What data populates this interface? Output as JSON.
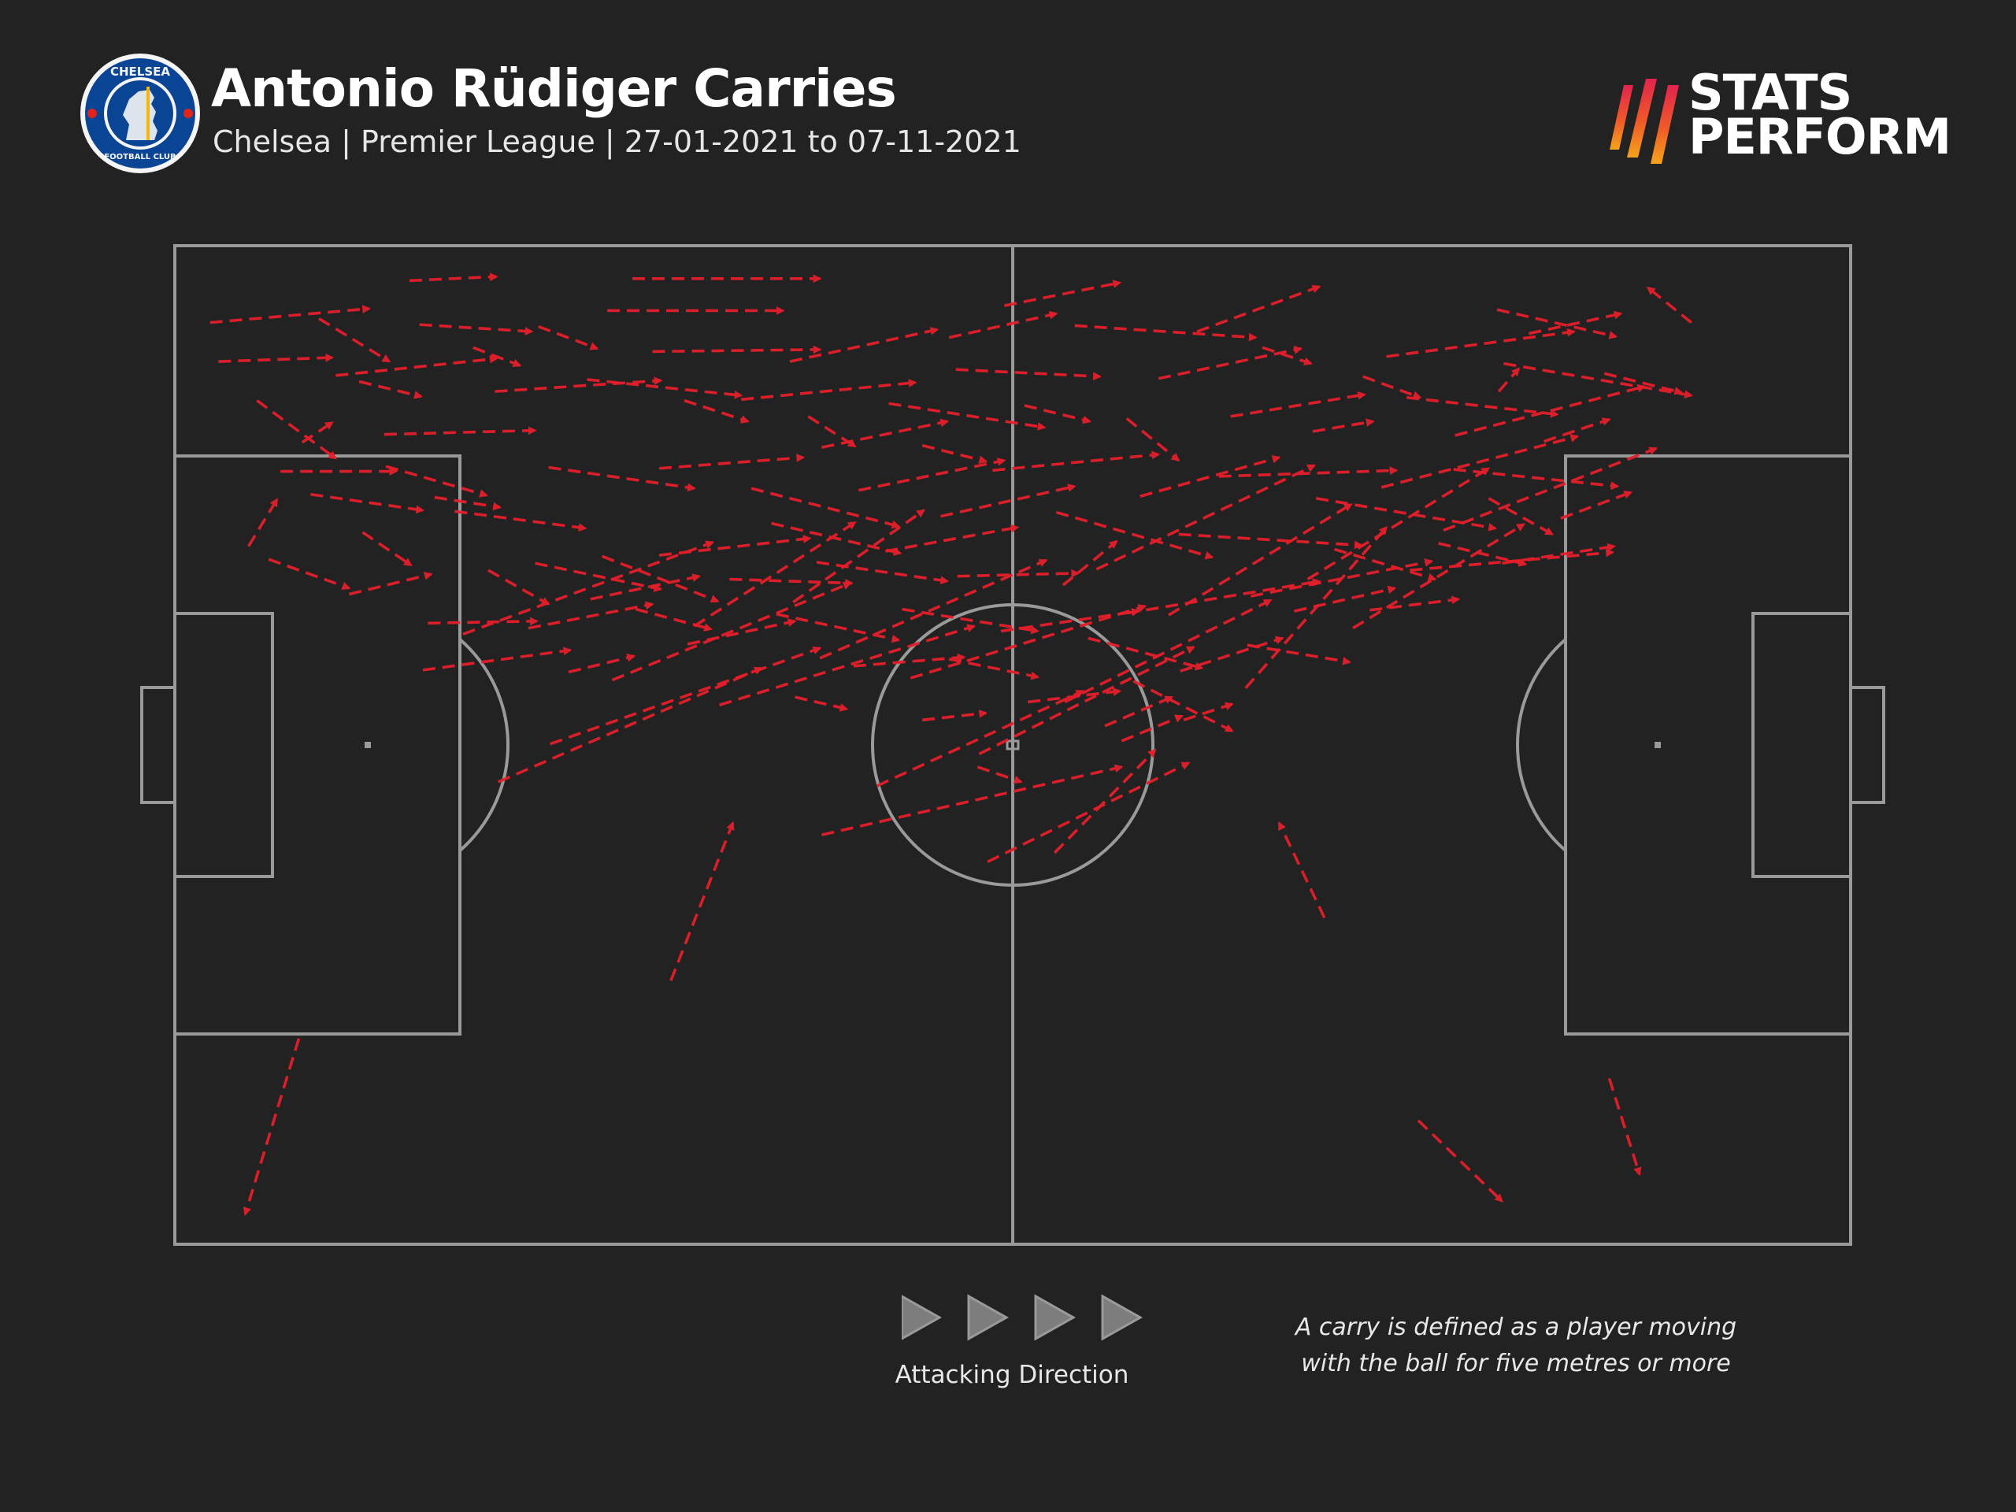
{
  "header": {
    "title": "Antonio Rüdiger Carries",
    "subtitle": "Chelsea | Premier League | 27-01-2021 to 07-11-2021",
    "club_crest": {
      "icon": "chelsea-crest-icon",
      "text_top": "CHELSEA",
      "text_bottom": "FOOTBALL CLUB"
    }
  },
  "brand": {
    "line1": "STATS",
    "line2": "PERFORM",
    "icon": "stats-perform-logo-icon",
    "gradient": [
      "#e2244e",
      "#f05a28",
      "#f6a31b"
    ]
  },
  "colors": {
    "background": "#222222",
    "pitch_lines": "#9a9a9a",
    "carry": "#e41e2b",
    "direction_arrows": "#7d7d7d"
  },
  "footer": {
    "direction_label": "Attacking Direction",
    "direction_icon": "play-arrow-icon",
    "definition_line1": "A carry is defined as a player moving",
    "definition_line2": "with the ball for five metres or more"
  },
  "chart_data": {
    "type": "pitch-arrow-map",
    "pitch": {
      "length": 100,
      "width": 100,
      "attacking_direction": "left-to-right"
    },
    "arrow_style": "dashed",
    "carries": [
      [
        90.5,
        7.7,
        87.9,
        4.2
      ],
      [
        74.2,
        87.6,
        79.2,
        95.7
      ],
      [
        85.6,
        83.4,
        87.4,
        93.0
      ],
      [
        68.6,
        67.3,
        65.9,
        57.8
      ],
      [
        7.4,
        79.4,
        4.2,
        97.0
      ],
      [
        29.6,
        73.6,
        33.3,
        57.8
      ],
      [
        38.6,
        59.0,
        56.5,
        52.2
      ],
      [
        19.3,
        53.7,
        35.0,
        42.3
      ],
      [
        52.5,
        60.8,
        58.5,
        50.5
      ],
      [
        48.5,
        61.7,
        60.5,
        51.8
      ],
      [
        41.9,
        54.1,
        54.2,
        44.6
      ],
      [
        22.4,
        49.9,
        38.5,
        40.3
      ],
      [
        32.5,
        46.0,
        47.7,
        38.1
      ],
      [
        48.0,
        50.9,
        60.8,
        40.2
      ],
      [
        26.1,
        43.5,
        40.3,
        33.8
      ],
      [
        38.5,
        41.3,
        52.0,
        31.5
      ],
      [
        53.1,
        45.7,
        65.4,
        35.5
      ],
      [
        43.9,
        43.3,
        57.9,
        36.1
      ],
      [
        63.9,
        44.3,
        72.3,
        28.2
      ],
      [
        70.3,
        38.3,
        80.5,
        27.9
      ],
      [
        17.2,
        38.9,
        32.1,
        29.7
      ],
      [
        31.0,
        38.1,
        40.6,
        27.7
      ],
      [
        36.9,
        35.7,
        44.7,
        26.5
      ],
      [
        59.3,
        37.0,
        70.2,
        25.9
      ],
      [
        55.0,
        32.4,
        68.0,
        22.0
      ],
      [
        67.6,
        33.4,
        78.4,
        22.3
      ],
      [
        56.8,
        36.8,
        68.3,
        33.6
      ],
      [
        64.2,
        35.1,
        75.0,
        31.6
      ],
      [
        73.7,
        32.5,
        85.8,
        30.7
      ],
      [
        75.7,
        28.5,
        88.4,
        20.3
      ],
      [
        72.0,
        24.2,
        83.7,
        19.1
      ],
      [
        76.4,
        19.0,
        87.7,
        14.1
      ],
      [
        79.3,
        11.8,
        90.5,
        15.0
      ],
      [
        72.3,
        11.1,
        83.5,
        8.6
      ],
      [
        78.9,
        6.4,
        86.0,
        9.1
      ],
      [
        61.0,
        8.6,
        68.3,
        4.1
      ],
      [
        53.7,
        8.0,
        64.5,
        9.2
      ],
      [
        58.7,
        13.3,
        67.2,
        10.3
      ],
      [
        63.0,
        17.1,
        71.0,
        14.9
      ],
      [
        73.5,
        15.2,
        82.5,
        16.9
      ],
      [
        76.3,
        22.4,
        86.1,
        24.1
      ],
      [
        68.1,
        25.3,
        78.8,
        28.3
      ],
      [
        62.3,
        23.1,
        72.9,
        22.5
      ],
      [
        59.9,
        28.9,
        70.8,
        30.0
      ],
      [
        57.6,
        25.1,
        65.9,
        21.2
      ],
      [
        48.8,
        22.5,
        58.7,
        20.9
      ],
      [
        52.6,
        26.7,
        61.9,
        31.2
      ],
      [
        45.7,
        27.1,
        53.7,
        24.1
      ],
      [
        40.8,
        24.5,
        49.5,
        21.5
      ],
      [
        34.4,
        24.3,
        43.2,
        28.1
      ],
      [
        28.9,
        22.3,
        37.5,
        21.2
      ],
      [
        22.3,
        22.2,
        31.0,
        24.3
      ],
      [
        19.1,
        14.6,
        29.0,
        13.5
      ],
      [
        12.5,
        18.9,
        21.5,
        18.5
      ],
      [
        9.6,
        13.0,
        19.2,
        11.3
      ],
      [
        8.6,
        7.3,
        12.8,
        11.6
      ],
      [
        2.6,
        11.6,
        9.4,
        11.2
      ],
      [
        2.1,
        7.7,
        11.6,
        6.3
      ],
      [
        14.6,
        7.9,
        21.3,
        8.6
      ],
      [
        14.0,
        3.5,
        19.2,
        3.1
      ],
      [
        27.3,
        3.3,
        38.5,
        3.3
      ],
      [
        25.8,
        6.5,
        36.3,
        6.5
      ],
      [
        28.5,
        10.6,
        38.5,
        10.4
      ],
      [
        24.6,
        13.4,
        33.8,
        15.0
      ],
      [
        33.8,
        15.4,
        44.2,
        13.7
      ],
      [
        36.7,
        11.6,
        45.5,
        8.4
      ],
      [
        38.6,
        20.2,
        46.1,
        17.6
      ],
      [
        42.6,
        15.8,
        51.9,
        18.2
      ],
      [
        46.6,
        12.4,
        55.2,
        13.1
      ],
      [
        46.2,
        9.2,
        52.6,
        6.8
      ],
      [
        49.5,
        6.0,
        56.4,
        3.7
      ],
      [
        35.6,
        27.8,
        43.3,
        30.8
      ],
      [
        28.9,
        31.0,
        37.9,
        29.3
      ],
      [
        21.5,
        31.8,
        29.0,
        34.4
      ],
      [
        16.7,
        26.6,
        24.5,
        28.3
      ],
      [
        12.6,
        22.1,
        18.6,
        25.0
      ],
      [
        8.1,
        24.9,
        14.8,
        26.5
      ],
      [
        5.6,
        31.4,
        10.4,
        34.3
      ],
      [
        4.4,
        30.1,
        6.1,
        25.4
      ],
      [
        4.9,
        15.5,
        9.6,
        21.3
      ],
      [
        6.3,
        22.6,
        13.2,
        22.6
      ],
      [
        10.4,
        34.9,
        15.3,
        32.9
      ],
      [
        15.1,
        37.8,
        21.6,
        37.6
      ],
      [
        14.8,
        42.5,
        23.6,
        40.5
      ],
      [
        21.1,
        38.3,
        28.5,
        35.9
      ],
      [
        24.8,
        35.4,
        31.3,
        33.1
      ],
      [
        25.5,
        31.1,
        32.4,
        35.6
      ],
      [
        33.1,
        33.4,
        40.4,
        33.8
      ],
      [
        38.3,
        31.7,
        46.1,
        33.6
      ],
      [
        42.4,
        30.6,
        50.3,
        28.2
      ],
      [
        43.4,
        36.4,
        51.5,
        38.6
      ],
      [
        46.7,
        33.1,
        53.9,
        32.8
      ],
      [
        49.3,
        38.6,
        57.5,
        36.6
      ],
      [
        54.5,
        39.3,
        61.3,
        42.3
      ],
      [
        60.0,
        42.6,
        66.1,
        39.3
      ],
      [
        64.0,
        40.0,
        70.1,
        41.7
      ],
      [
        66.8,
        36.6,
        72.8,
        34.3
      ],
      [
        69.2,
        30.4,
        75.2,
        33.4
      ],
      [
        79.2,
        31.8,
        85.9,
        30.1
      ],
      [
        78.4,
        25.3,
        82.2,
        28.9
      ],
      [
        82.7,
        27.3,
        86.9,
        24.7
      ],
      [
        81.7,
        19.6,
        85.6,
        17.4
      ],
      [
        85.3,
        12.8,
        89.9,
        14.7
      ],
      [
        80.8,
        8.8,
        86.3,
        6.8
      ],
      [
        79.0,
        14.6,
        80.2,
        12.3
      ],
      [
        75.4,
        29.8,
        80.6,
        31.9
      ],
      [
        71.3,
        36.5,
        76.6,
        35.4
      ],
      [
        57.2,
        43.6,
        63.1,
        48.6
      ],
      [
        55.5,
        48.1,
        59.5,
        45.2
      ],
      [
        50.9,
        45.7,
        56.4,
        44.6
      ],
      [
        46.2,
        41.4,
        51.5,
        43.2
      ],
      [
        40.5,
        42.1,
        47.1,
        41.2
      ],
      [
        35.9,
        36.9,
        43.2,
        39.5
      ],
      [
        30.6,
        39.9,
        37.0,
        37.6
      ],
      [
        27.5,
        36.4,
        32.0,
        38.4
      ],
      [
        23.5,
        42.7,
        27.4,
        41.1
      ],
      [
        18.7,
        32.5,
        22.3,
        35.9
      ],
      [
        15.5,
        25.2,
        19.4,
        26.2
      ],
      [
        11.2,
        28.7,
        14.1,
        32.0
      ],
      [
        7.6,
        19.7,
        9.4,
        17.7
      ],
      [
        11.0,
        13.6,
        14.7,
        15.1
      ],
      [
        17.8,
        10.2,
        20.6,
        12.0
      ],
      [
        21.7,
        8.1,
        25.2,
        10.3
      ],
      [
        30.4,
        15.5,
        34.2,
        17.6
      ],
      [
        37.8,
        17.1,
        40.6,
        20.1
      ],
      [
        44.6,
        20.0,
        48.4,
        21.6
      ],
      [
        50.7,
        16.0,
        54.6,
        17.6
      ],
      [
        56.8,
        17.3,
        59.9,
        21.5
      ],
      [
        64.9,
        10.2,
        67.8,
        11.8
      ],
      [
        67.9,
        18.6,
        71.5,
        17.6
      ],
      [
        70.9,
        13.1,
        74.3,
        15.2
      ],
      [
        53.0,
        34.0,
        56.2,
        29.6
      ],
      [
        37.0,
        45.2,
        40.1,
        46.4
      ],
      [
        44.6,
        47.5,
        48.4,
        46.8
      ],
      [
        47.9,
        52.2,
        50.5,
        53.7
      ],
      [
        56.5,
        49.6,
        60.1,
        47.1
      ],
      [
        60.2,
        47.5,
        63.1,
        45.9
      ]
    ]
  }
}
